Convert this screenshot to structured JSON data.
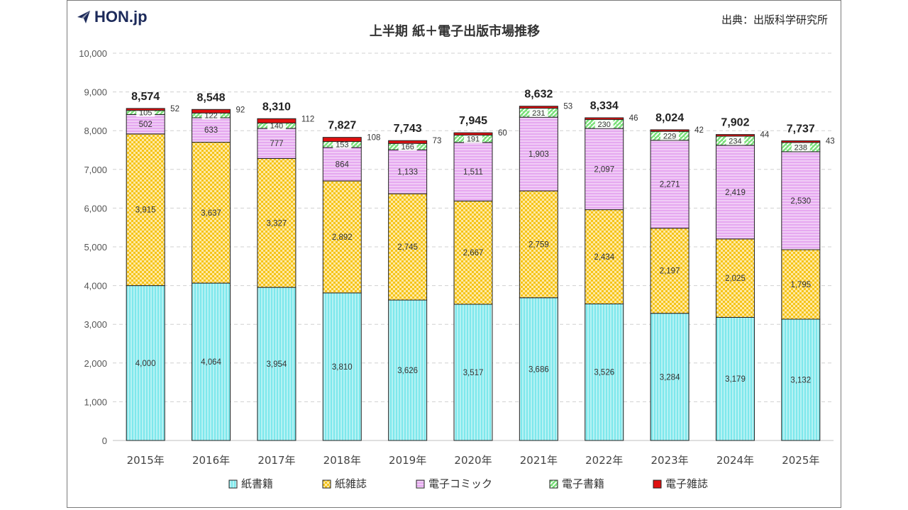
{
  "brand": {
    "logo_text": "HON.jp",
    "logo_icon": "paper-plane-icon"
  },
  "source_note": "出典：出版科学研究所",
  "colors": {
    "paper_books": "#7ee8ec",
    "paper_magazines": "#f5c419",
    "e_comics": "#e6a8f0",
    "e_books": "#7be07b",
    "e_magazines": "#e01010"
  },
  "chart_data": {
    "type": "bar",
    "stacked": true,
    "title": "上半期 紙＋電子出版市場推移",
    "xlabel": "",
    "ylabel": "",
    "ylim": [
      0,
      10000
    ],
    "yticks": [
      "0",
      "1,000",
      "2,000",
      "3,000",
      "4,000",
      "5,000",
      "6,000",
      "7,000",
      "8,000",
      "9,000",
      "10,000"
    ],
    "grid": true,
    "legend_position": "bottom",
    "categories": [
      "2015年",
      "2016年",
      "2017年",
      "2018年",
      "2019年",
      "2020年",
      "2021年",
      "2022年",
      "2023年",
      "2024年",
      "2025年"
    ],
    "series": [
      {
        "name": "紙書籍",
        "color": "#7ee8ec",
        "values": [
          4000,
          4064,
          3954,
          3810,
          3626,
          3517,
          3686,
          3526,
          3284,
          3179,
          3132
        ]
      },
      {
        "name": "紙雑誌",
        "color": "#f5c419",
        "values": [
          3915,
          3637,
          3327,
          2892,
          2745,
          2667,
          2759,
          2434,
          2197,
          2025,
          1795
        ]
      },
      {
        "name": "電子コミック",
        "color": "#e6a8f0",
        "values": [
          502,
          633,
          777,
          864,
          1133,
          1511,
          1903,
          2097,
          2271,
          2419,
          2530
        ]
      },
      {
        "name": "電子書籍",
        "color": "#7be07b",
        "values": [
          105,
          122,
          140,
          153,
          166,
          191,
          231,
          230,
          229,
          234,
          238
        ]
      },
      {
        "name": "電子雑誌",
        "color": "#e01010",
        "values": [
          52,
          92,
          112,
          108,
          73,
          60,
          53,
          46,
          42,
          44,
          43
        ]
      }
    ],
    "totals": [
      "8,574",
      "8,548",
      "8,310",
      "7,827",
      "7,743",
      "7,945",
      "8,632",
      "8,334",
      "8,024",
      "7,902",
      "7,737"
    ]
  }
}
